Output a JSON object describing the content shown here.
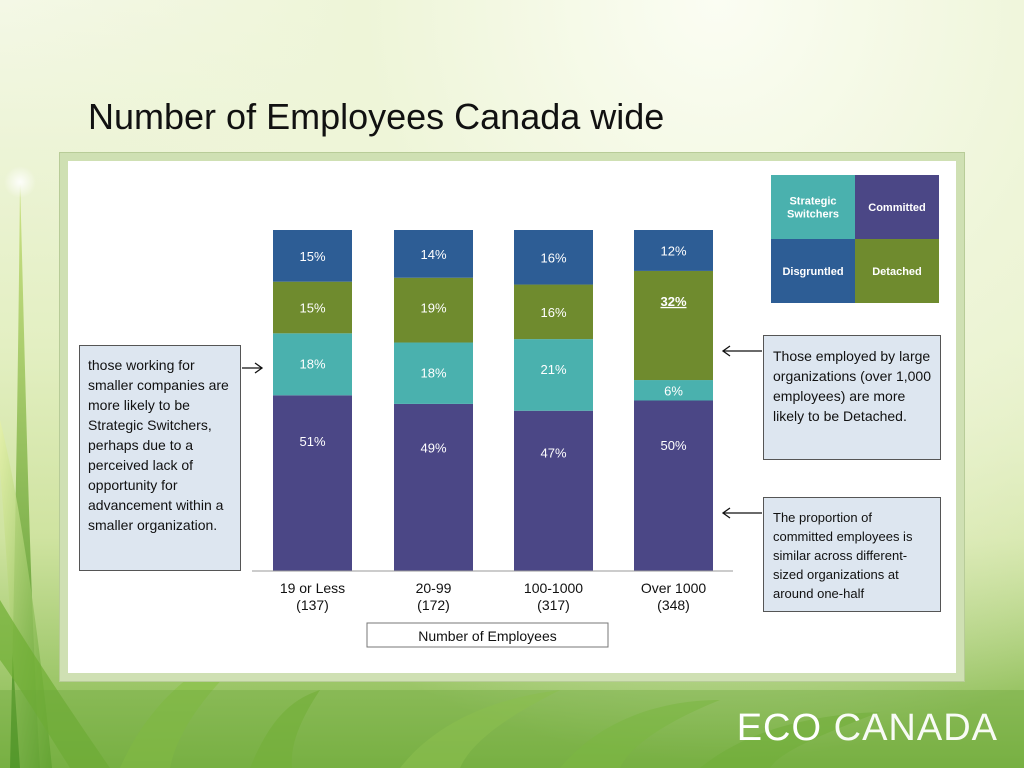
{
  "slide": {
    "title": "Number of Employees Canada wide",
    "brand": {
      "part1": "ECO",
      "part2": "CANADA"
    }
  },
  "notes": {
    "left": "those working for smaller companies are more likely to be Strategic Switchers, perhaps due to a perceived lack of opportunity for advancement within a smaller organization.",
    "right_top": "Those employed by large organizations (over 1,000 employees) are more likely to be Detached.",
    "right_bottom": "The proportion of committed employees is similar across different-sized organizations at around one-half"
  },
  "colors": {
    "committed": "#4b4786",
    "strategic_switchers": "#4ab1ae",
    "detached": "#6f8b2e",
    "disgruntled": "#2d5d95"
  },
  "chart_data": {
    "type": "bar",
    "stacked": true,
    "xlabel": "Number of Employees",
    "ylabel": "",
    "ylim": [
      0,
      100
    ],
    "categories": [
      "19 or Less",
      "20-99",
      "100-1000",
      "Over 1000"
    ],
    "category_counts": [
      "(137)",
      "(172)",
      "(317)",
      "(348)"
    ],
    "series": [
      {
        "name": "Committed",
        "color": "#4b4786",
        "values": [
          51,
          49,
          47,
          50
        ],
        "labels": [
          "51%",
          "49%",
          "47%",
          "50%"
        ]
      },
      {
        "name": "Strategic Switchers",
        "color": "#4ab1ae",
        "values": [
          18,
          18,
          21,
          6
        ],
        "labels": [
          "18%",
          "18%",
          "21%",
          "6%"
        ]
      },
      {
        "name": "Detached",
        "color": "#6f8b2e",
        "values": [
          15,
          19,
          16,
          32
        ],
        "labels": [
          "15%",
          "19%",
          "16%",
          "32%"
        ]
      },
      {
        "name": "Disgruntled",
        "color": "#2d5d95",
        "values": [
          15,
          14,
          16,
          12
        ],
        "labels": [
          "15%",
          "14%",
          "16%",
          "12%"
        ]
      }
    ],
    "highlight": {
      "category": "Over 1000",
      "series": "Detached"
    },
    "legend": {
      "placement": "top-right",
      "layout": "2x2 grid",
      "items": [
        {
          "name": "Strategic\nSwitchers",
          "color": "#4ab1ae"
        },
        {
          "name": "Committed",
          "color": "#4b4786"
        },
        {
          "name": "Disgruntled",
          "color": "#2d5d95"
        },
        {
          "name": "Detached",
          "color": "#6f8b2e"
        }
      ]
    }
  }
}
